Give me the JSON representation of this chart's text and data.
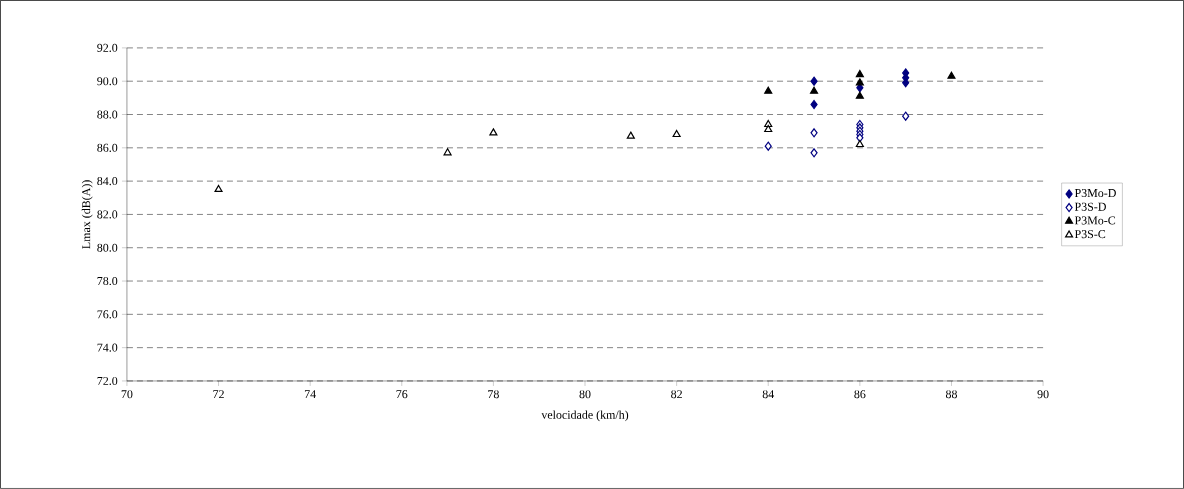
{
  "chart_data": {
    "type": "scatter",
    "xlabel": "velocidade (km/h)",
    "ylabel": "Lmax (dB(A))",
    "series": [
      {
        "name": "P3Mo-D",
        "color": "#000080",
        "marker": "diamond",
        "x": [
          85,
          85,
          86,
          87,
          87,
          87
        ],
        "values": [
          90.0,
          88.6,
          89.6,
          90.5,
          90.2,
          89.9
        ]
      },
      {
        "name": "P3S-D",
        "color": "#000080",
        "marker": "diamond",
        "x": [
          84,
          85,
          85,
          86,
          86,
          86,
          86,
          86,
          87
        ],
        "values": [
          86.1,
          86.9,
          85.7,
          87.4,
          87.2,
          87.0,
          86.8,
          86.6,
          87.9
        ]
      },
      {
        "name": "P3Mo-C",
        "color": "#000000",
        "marker": "triangle",
        "x": [
          84,
          85,
          86,
          86,
          86,
          88
        ],
        "values": [
          89.4,
          89.4,
          90.4,
          89.9,
          89.1,
          90.3
        ]
      },
      {
        "name": "P3S-C",
        "color": "#000000",
        "marker": "triangle",
        "x": [
          72,
          77,
          78,
          81,
          82,
          84,
          84,
          86
        ],
        "values": [
          83.5,
          85.7,
          86.9,
          86.7,
          86.8,
          87.4,
          87.1,
          86.2
        ]
      }
    ],
    "xlim": [
      70,
      90
    ],
    "xticks": [
      70,
      72,
      74,
      76,
      78,
      80,
      82,
      84,
      86,
      88,
      90
    ],
    "ylim": [
      72,
      92
    ],
    "yticks": [
      {
        "value": 72,
        "label": "72.0"
      },
      {
        "value": 74,
        "label": "74.0"
      },
      {
        "value": 76,
        "label": "76.0"
      },
      {
        "value": 78,
        "label": "78.0"
      },
      {
        "value": 80,
        "label": "80.0"
      },
      {
        "value": 82,
        "label": "82.0"
      },
      {
        "value": 84,
        "label": "84.0"
      },
      {
        "value": 86,
        "label": "86.0"
      },
      {
        "value": 88,
        "label": "88.0"
      },
      {
        "value": 90,
        "label": "90.0"
      },
      {
        "value": 92,
        "label": "92.0"
      }
    ],
    "grid": "y",
    "legend": "right"
  }
}
